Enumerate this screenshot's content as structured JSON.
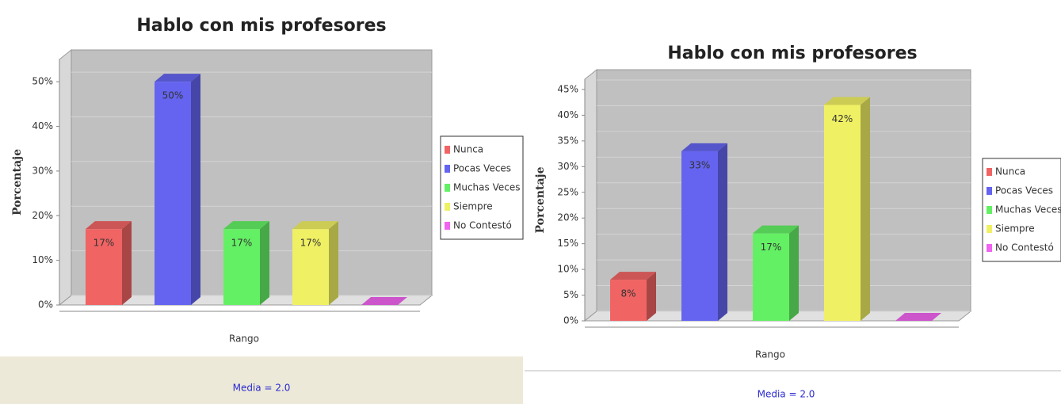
{
  "chart_data": [
    {
      "type": "bar3d",
      "title": "Hablo con mis profesores",
      "ylabel": "Porcentaje",
      "xlabel": "Rango",
      "footer": "Media = 2.0",
      "categories": [
        "Nunca",
        "Pocas Veces",
        "Muchas Veces",
        "Siempre",
        "No Contestó"
      ],
      "colors": [
        "#f06464",
        "#6464f0",
        "#64f064",
        "#f0f064",
        "#f064f0"
      ],
      "values": [
        17,
        50,
        17,
        17,
        0
      ],
      "value_labels": [
        "17%",
        "50%",
        "17%",
        "17%",
        null
      ],
      "ylim": [
        0,
        55
      ],
      "yticks": [
        {
          "value": 0,
          "label": "0%"
        },
        {
          "value": 10,
          "label": "10%"
        },
        {
          "value": 20,
          "label": "20%"
        },
        {
          "value": 30,
          "label": "30%"
        },
        {
          "value": 40,
          "label": "40%"
        },
        {
          "value": 50,
          "label": "50%"
        }
      ],
      "legend": "right"
    },
    {
      "type": "bar3d",
      "title": "Hablo con mis profesores",
      "ylabel": "Porcentaje",
      "xlabel": "Rango",
      "footer": "Media = 2.0",
      "categories": [
        "Nunca",
        "Pocas Veces",
        "Muchas Veces",
        "Siempre",
        "No Contestó"
      ],
      "colors": [
        "#f06464",
        "#6464f0",
        "#64f064",
        "#f0f064",
        "#f064f0"
      ],
      "values": [
        8,
        33,
        17,
        42,
        0
      ],
      "value_labels": [
        "8%",
        "33%",
        "17%",
        "42%",
        null
      ],
      "ylim": [
        0,
        47
      ],
      "yticks": [
        {
          "value": 0,
          "label": "0%"
        },
        {
          "value": 5,
          "label": "5%"
        },
        {
          "value": 10,
          "label": "10%"
        },
        {
          "value": 15,
          "label": "15%"
        },
        {
          "value": 20,
          "label": "20%"
        },
        {
          "value": 25,
          "label": "25%"
        },
        {
          "value": 30,
          "label": "30%"
        },
        {
          "value": 35,
          "label": "35%"
        },
        {
          "value": 40,
          "label": "40%"
        },
        {
          "value": 45,
          "label": "45%"
        }
      ],
      "legend": "right"
    }
  ]
}
